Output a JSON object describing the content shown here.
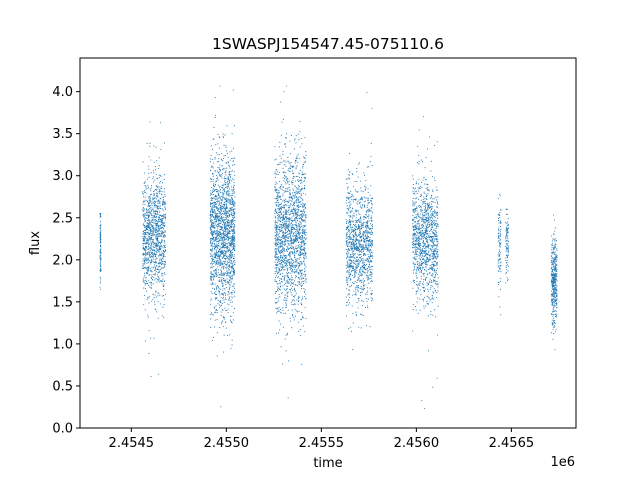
{
  "chart_data": {
    "type": "scatter",
    "title": "1SWASPJ154547.45-075110.6",
    "xlabel": "time",
    "ylabel": "flux",
    "x_offset_label": "1e6",
    "xlim": [
      2454230,
      2456840
    ],
    "ylim": [
      0.0,
      4.4
    ],
    "x_ticks": [
      2.4545,
      2.455,
      2.4555,
      2.456,
      2.4565
    ],
    "x_tick_labels": [
      "2.4545",
      "2.4550",
      "2.4555",
      "2.4560",
      "2.4565"
    ],
    "y_ticks": [
      0.0,
      0.5,
      1.0,
      1.5,
      2.0,
      2.5,
      3.0,
      3.5,
      4.0
    ],
    "y_tick_labels": [
      "0.0",
      "0.5",
      "1.0",
      "1.5",
      "2.0",
      "2.5",
      "3.0",
      "3.5",
      "4.0"
    ],
    "grid": false,
    "marker_color": "#1f77b4",
    "series": [
      {
        "name": "",
        "seasons": [
          {
            "x_start": 2454335,
            "x_end": 2454340,
            "y_center": 2.2,
            "y_spread": 0.25,
            "y_min": 1.65,
            "y_max": 2.55,
            "density": "sparse"
          },
          {
            "x_start": 2454560,
            "x_end": 2454680,
            "y_center": 2.3,
            "y_spread": 0.35,
            "y_min": 0.35,
            "y_max": 3.85,
            "density": "dense"
          },
          {
            "x_start": 2454915,
            "x_end": 2455045,
            "y_center": 2.3,
            "y_spread": 0.45,
            "y_min": 0.2,
            "y_max": 4.2,
            "density": "very dense"
          },
          {
            "x_start": 2455255,
            "x_end": 2455420,
            "y_center": 2.3,
            "y_spread": 0.45,
            "y_min": 0.35,
            "y_max": 4.2,
            "density": "very dense"
          },
          {
            "x_start": 2455630,
            "x_end": 2455770,
            "y_center": 2.2,
            "y_spread": 0.35,
            "y_min": 0.45,
            "y_max": 4.1,
            "density": "dense"
          },
          {
            "x_start": 2455980,
            "x_end": 2456115,
            "y_center": 2.25,
            "y_spread": 0.35,
            "y_min": 0.2,
            "y_max": 3.9,
            "density": "dense"
          },
          {
            "x_start": 2456430,
            "x_end": 2456445,
            "y_center": 2.25,
            "y_spread": 0.3,
            "y_min": 0.85,
            "y_max": 3.9,
            "density": "sparse"
          },
          {
            "x_start": 2456470,
            "x_end": 2456485,
            "y_center": 2.2,
            "y_spread": 0.18,
            "y_min": 1.65,
            "y_max": 2.6,
            "density": "sparse"
          },
          {
            "x_start": 2456710,
            "x_end": 2456740,
            "y_center": 1.75,
            "y_spread": 0.25,
            "y_min": 0.8,
            "y_max": 2.55,
            "density": "medium"
          }
        ]
      }
    ]
  }
}
